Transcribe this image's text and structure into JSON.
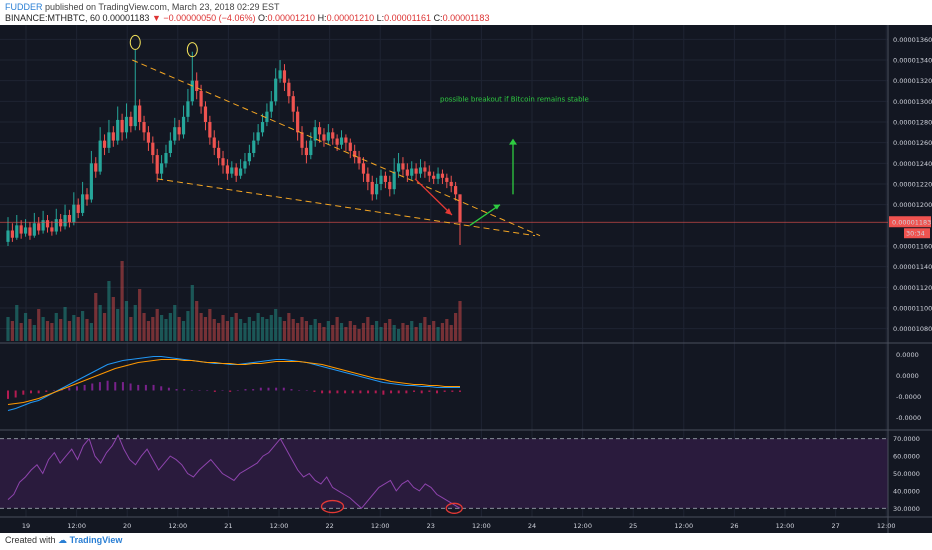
{
  "header": {
    "author": "FUDDER",
    "published": "published on TradingView.com, March 23, 2018 02:29 EST",
    "symbol": "BINANCE:MTHBTC, 60",
    "last": "0.00001183",
    "change": "−0.00000050 (−4.06%)",
    "o_label": "O:",
    "o": "0.00001210",
    "h_label": "H:",
    "h": "0.00001210",
    "l_label": "L:",
    "l": "0.00001161",
    "c_label": "C:",
    "c": "0.00001183"
  },
  "footer": {
    "created": "Created with",
    "brand": "TradingView"
  },
  "colors": {
    "background": "#131722",
    "up": "#26a69a",
    "down": "#ef5350",
    "trendline": "#f5a623",
    "annotation": "#2ecc40",
    "red_arrow": "#e53935",
    "rsi_band": "#2a1b3d",
    "rsi_line": "#8e44ad"
  },
  "chart_data": {
    "type": "candlestick",
    "price_axis": {
      "range": [
        1.07e-05,
        1.37e-05
      ],
      "ticks": [
        "0.00001360",
        "0.00001340",
        "0.00001320",
        "0.00001300",
        "0.00001280",
        "0.00001260",
        "0.00001240",
        "0.00001220",
        "0.00001200",
        "0.00001160",
        "0.00001140",
        "0.00001120",
        "0.00001100",
        "0.00001080"
      ],
      "current_label": "0.00001183",
      "countdown_label": "30:34"
    },
    "macd_axis": {
      "ticks": [
        "0.0000",
        "0.0000",
        "-0.0000",
        "-0.0000"
      ]
    },
    "rsi_axis": {
      "ticks": [
        "70.0000",
        "60.0000",
        "50.0000",
        "40.0000",
        "30.0000"
      ],
      "range": [
        25,
        75
      ],
      "bands": [
        70,
        30
      ]
    },
    "x_ticks": [
      "19",
      "12:00",
      "20",
      "12:00",
      "21",
      "12:00",
      "22",
      "12:00",
      "23",
      "12:00",
      "24",
      "12:00",
      "25",
      "12:00",
      "26",
      "12:00",
      "27",
      "12:00"
    ],
    "annotation_text": "possible breakout if Bitcoin remains stable",
    "candles": [
      [
        1164,
        1175,
        1188,
        1160
      ],
      [
        1175,
        1168,
        1182,
        1164
      ],
      [
        1168,
        1180,
        1190,
        1166
      ],
      [
        1180,
        1172,
        1185,
        1167
      ],
      [
        1172,
        1178,
        1186,
        1169
      ],
      [
        1178,
        1170,
        1183,
        1166
      ],
      [
        1170,
        1182,
        1192,
        1168
      ],
      [
        1182,
        1175,
        1188,
        1171
      ],
      [
        1175,
        1185,
        1194,
        1172
      ],
      [
        1185,
        1178,
        1190,
        1173
      ],
      [
        1178,
        1174,
        1184,
        1170
      ],
      [
        1174,
        1186,
        1196,
        1171
      ],
      [
        1186,
        1179,
        1191,
        1174
      ],
      [
        1179,
        1190,
        1200,
        1176
      ],
      [
        1190,
        1183,
        1195,
        1178
      ],
      [
        1183,
        1200,
        1212,
        1180
      ],
      [
        1200,
        1192,
        1206,
        1187
      ],
      [
        1192,
        1210,
        1222,
        1189
      ],
      [
        1210,
        1205,
        1216,
        1199
      ],
      [
        1205,
        1240,
        1252,
        1202
      ],
      [
        1240,
        1232,
        1246,
        1226
      ],
      [
        1232,
        1262,
        1275,
        1229
      ],
      [
        1262,
        1255,
        1268,
        1248
      ],
      [
        1255,
        1270,
        1282,
        1250
      ],
      [
        1270,
        1262,
        1276,
        1256
      ],
      [
        1262,
        1282,
        1295,
        1258
      ],
      [
        1282,
        1270,
        1288,
        1262
      ],
      [
        1270,
        1285,
        1298,
        1264
      ],
      [
        1285,
        1276,
        1290,
        1270
      ],
      [
        1276,
        1296,
        1350,
        1272
      ],
      [
        1296,
        1280,
        1302,
        1272
      ],
      [
        1280,
        1270,
        1286,
        1262
      ],
      [
        1270,
        1260,
        1276,
        1252
      ],
      [
        1260,
        1248,
        1266,
        1240
      ],
      [
        1248,
        1230,
        1254,
        1222
      ],
      [
        1230,
        1240,
        1248,
        1224
      ],
      [
        1240,
        1250,
        1258,
        1236
      ],
      [
        1250,
        1262,
        1270,
        1246
      ],
      [
        1262,
        1275,
        1284,
        1258
      ],
      [
        1275,
        1268,
        1282,
        1262
      ],
      [
        1268,
        1285,
        1296,
        1264
      ],
      [
        1285,
        1300,
        1312,
        1280
      ],
      [
        1300,
        1320,
        1348,
        1296
      ],
      [
        1320,
        1310,
        1328,
        1302
      ],
      [
        1310,
        1295,
        1316,
        1288
      ],
      [
        1295,
        1280,
        1300,
        1272
      ],
      [
        1280,
        1265,
        1286,
        1258
      ],
      [
        1265,
        1255,
        1272,
        1248
      ],
      [
        1255,
        1245,
        1262,
        1238
      ],
      [
        1245,
        1238,
        1252,
        1230
      ],
      [
        1238,
        1230,
        1244,
        1224
      ],
      [
        1230,
        1236,
        1242,
        1226
      ],
      [
        1236,
        1228,
        1240,
        1222
      ],
      [
        1228,
        1235,
        1244,
        1225
      ],
      [
        1235,
        1242,
        1250,
        1230
      ],
      [
        1242,
        1250,
        1258,
        1238
      ],
      [
        1250,
        1262,
        1270,
        1246
      ],
      [
        1262,
        1270,
        1278,
        1258
      ],
      [
        1270,
        1280,
        1288,
        1266
      ],
      [
        1280,
        1290,
        1298,
        1276
      ],
      [
        1290,
        1300,
        1310,
        1284
      ],
      [
        1300,
        1322,
        1332,
        1296
      ],
      [
        1322,
        1330,
        1340,
        1318
      ],
      [
        1330,
        1318,
        1336,
        1310
      ],
      [
        1318,
        1305,
        1322,
        1298
      ],
      [
        1305,
        1290,
        1310,
        1280
      ],
      [
        1290,
        1270,
        1295,
        1262
      ],
      [
        1270,
        1255,
        1276,
        1248
      ],
      [
        1255,
        1248,
        1262,
        1240
      ],
      [
        1248,
        1262,
        1270,
        1244
      ],
      [
        1262,
        1275,
        1282,
        1256
      ],
      [
        1275,
        1268,
        1280,
        1260
      ],
      [
        1268,
        1262,
        1274,
        1256
      ],
      [
        1262,
        1270,
        1278,
        1258
      ],
      [
        1270,
        1264,
        1274,
        1258
      ],
      [
        1264,
        1258,
        1268,
        1252
      ],
      [
        1258,
        1265,
        1272,
        1254
      ],
      [
        1265,
        1260,
        1268,
        1252
      ],
      [
        1260,
        1252,
        1264,
        1245
      ],
      [
        1252,
        1246,
        1258,
        1240
      ],
      [
        1246,
        1240,
        1252,
        1234
      ],
      [
        1240,
        1230,
        1246,
        1222
      ],
      [
        1230,
        1222,
        1236,
        1214
      ],
      [
        1222,
        1210,
        1228,
        1204
      ],
      [
        1210,
        1220,
        1226,
        1205
      ],
      [
        1220,
        1228,
        1234,
        1214
      ],
      [
        1228,
        1222,
        1232,
        1216
      ],
      [
        1222,
        1215,
        1228,
        1208
      ],
      [
        1215,
        1232,
        1245,
        1210
      ],
      [
        1232,
        1240,
        1250,
        1226
      ],
      [
        1240,
        1234,
        1246,
        1228
      ],
      [
        1234,
        1228,
        1240,
        1222
      ],
      [
        1228,
        1235,
        1242,
        1224
      ],
      [
        1235,
        1230,
        1240,
        1224
      ],
      [
        1230,
        1236,
        1244,
        1226
      ],
      [
        1236,
        1232,
        1242,
        1226
      ],
      [
        1232,
        1228,
        1238,
        1222
      ],
      [
        1228,
        1225,
        1232,
        1220
      ],
      [
        1225,
        1230,
        1236,
        1220
      ],
      [
        1230,
        1226,
        1234,
        1220
      ],
      [
        1226,
        1222,
        1230,
        1216
      ],
      [
        1222,
        1218,
        1228,
        1212
      ],
      [
        1218,
        1210,
        1222,
        1204
      ],
      [
        1210,
        1183,
        1210,
        1161
      ]
    ],
    "volume": [
      12,
      10,
      18,
      9,
      14,
      11,
      8,
      16,
      12,
      10,
      9,
      14,
      11,
      17,
      10,
      13,
      12,
      15,
      11,
      9,
      24,
      18,
      14,
      30,
      22,
      16,
      40,
      20,
      12,
      18,
      26,
      14,
      10,
      12,
      16,
      13,
      11,
      14,
      18,
      12,
      10,
      15,
      28,
      20,
      14,
      12,
      16,
      11,
      9,
      13,
      10,
      12,
      14,
      11,
      9,
      12,
      10,
      14,
      12,
      11,
      13,
      16,
      12,
      10,
      14,
      11,
      9,
      12,
      10,
      8,
      11,
      9,
      7,
      10,
      8,
      12,
      9,
      7,
      10,
      8,
      6,
      9,
      12,
      8,
      10,
      7,
      9,
      11,
      8,
      6,
      9,
      8,
      10,
      7,
      9,
      12,
      8,
      10,
      7,
      9,
      11,
      8,
      14,
      20
    ],
    "macd": [
      -20,
      -18,
      -15,
      -12,
      -10,
      -6,
      -2,
      2,
      6,
      10,
      14,
      18,
      22,
      26,
      28,
      30,
      31,
      32,
      33,
      34,
      34,
      33,
      32,
      31,
      30,
      29,
      28,
      27,
      27,
      26,
      26,
      27,
      28,
      29,
      30,
      31,
      31,
      30,
      29,
      28,
      26,
      24,
      22,
      20,
      18,
      16,
      14,
      12,
      10,
      8,
      7,
      6,
      5,
      5,
      4,
      4,
      3,
      3,
      3,
      3
    ],
    "signal": [
      -14,
      -13,
      -12,
      -10,
      -8,
      -5,
      -2,
      1,
      4,
      7,
      10,
      13,
      16,
      19,
      22,
      24,
      26,
      28,
      29,
      30,
      31,
      31,
      31,
      30,
      30,
      29,
      28,
      28,
      27,
      27,
      26,
      26,
      27,
      27,
      28,
      29,
      29,
      29,
      29,
      28,
      27,
      26,
      24,
      22,
      20,
      18,
      16,
      14,
      12,
      11,
      9,
      8,
      7,
      6,
      6,
      5,
      5,
      4,
      4,
      4
    ],
    "rsi": [
      35,
      38,
      45,
      48,
      52,
      55,
      50,
      58,
      62,
      56,
      60,
      64,
      58,
      66,
      70,
      60,
      56,
      62,
      66,
      72,
      64,
      58,
      55,
      60,
      64,
      58,
      52,
      56,
      60,
      58,
      55,
      50,
      48,
      52,
      55,
      58,
      54,
      50,
      48,
      46,
      50,
      52,
      54,
      56,
      60,
      62,
      66,
      70,
      64,
      58,
      52,
      48,
      50,
      46,
      44,
      48,
      42,
      40,
      38,
      36,
      33,
      30,
      34,
      38,
      42,
      44,
      46,
      40,
      44,
      46,
      42,
      40,
      44,
      42,
      38,
      36,
      34,
      32,
      30
    ]
  }
}
